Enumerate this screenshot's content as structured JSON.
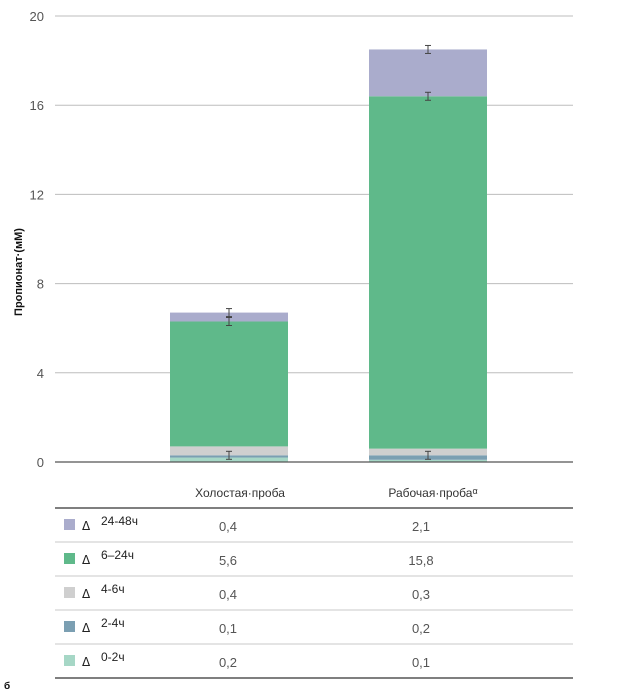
{
  "chart_data": {
    "type": "bar",
    "stacked": true,
    "categories": [
      "Холостая·проба",
      "Рабочая·проба"
    ],
    "category_marks": [
      "",
      "α"
    ],
    "ylabel": "Пропионат·(мМ)",
    "ylim": [
      0,
      20
    ],
    "yticks": [
      0,
      4,
      8,
      12,
      16,
      20
    ],
    "grid": true,
    "delta_symbol": "Δ",
    "series": [
      {
        "name": "0-2ч",
        "color": "#a6d7c6",
        "values": [
          0.2,
          0.1
        ],
        "labels": [
          "0,2",
          "0,1"
        ]
      },
      {
        "name": "2-4ч",
        "color": "#7b9fb2",
        "values": [
          0.1,
          0.2
        ],
        "labels": [
          "0,1",
          "0,2"
        ]
      },
      {
        "name": "4-6ч",
        "color": "#cfcfcf",
        "values": [
          0.4,
          0.3
        ],
        "labels": [
          "0,4",
          "0,3"
        ]
      },
      {
        "name": "6–24ч",
        "color": "#5fb98a",
        "values": [
          5.6,
          15.8
        ],
        "labels": [
          "5,6",
          "15,8"
        ]
      },
      {
        "name": "24-48ч",
        "color": "#aaaccc",
        "values": [
          0.4,
          2.1
        ],
        "labels": [
          "0,4",
          "2,1"
        ]
      }
    ],
    "table_order": [
      "24-48ч",
      "6–24ч",
      "4-6ч",
      "2-4ч",
      "0-2ч"
    ]
  },
  "footer_mark": "б"
}
